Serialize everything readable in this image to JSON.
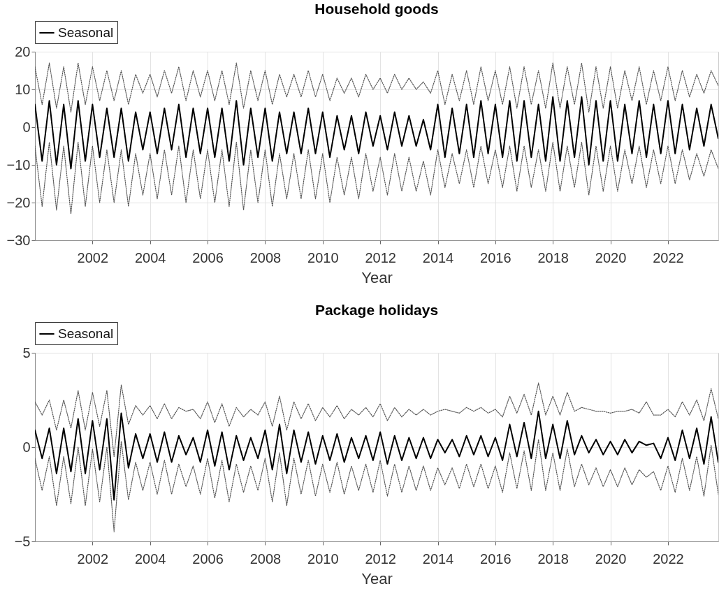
{
  "chart_data": [
    {
      "type": "line",
      "title": "Household goods",
      "xlabel": "Year",
      "grid": true,
      "legend": "top left",
      "x": [
        2000,
        2000.25,
        2000.5,
        2000.75,
        2001,
        2001.25,
        2001.5,
        2001.75,
        2002,
        2002.25,
        2002.5,
        2002.75,
        2003,
        2003.25,
        2003.5,
        2003.75,
        2004,
        2004.25,
        2004.5,
        2004.75,
        2005,
        2005.25,
        2005.5,
        2005.75,
        2006,
        2006.25,
        2006.5,
        2006.75,
        2007,
        2007.25,
        2007.5,
        2007.75,
        2008,
        2008.25,
        2008.5,
        2008.75,
        2009,
        2009.25,
        2009.5,
        2009.75,
        2010,
        2010.25,
        2010.5,
        2010.75,
        2011,
        2011.25,
        2011.5,
        2011.75,
        2012,
        2012.25,
        2012.5,
        2012.75,
        2013,
        2013.25,
        2013.5,
        2013.75,
        2014,
        2014.25,
        2014.5,
        2014.75,
        2015,
        2015.25,
        2015.5,
        2015.75,
        2016,
        2016.25,
        2016.5,
        2016.75,
        2017,
        2017.25,
        2017.5,
        2017.75,
        2018,
        2018.25,
        2018.5,
        2018.75,
        2019,
        2019.25,
        2019.5,
        2019.75,
        2020,
        2020.25,
        2020.5,
        2020.75,
        2021,
        2021.25,
        2021.5,
        2021.75,
        2022,
        2022.25,
        2022.5,
        2022.75,
        2023,
        2023.25,
        2023.5,
        2023.75
      ],
      "xlim": [
        2000,
        2023.75
      ],
      "xticks": [
        2002,
        2004,
        2006,
        2008,
        2010,
        2012,
        2014,
        2016,
        2018,
        2020,
        2022
      ],
      "ylim": [
        -30,
        20
      ],
      "yticks": [
        -30,
        -20,
        -10,
        0,
        10,
        20
      ],
      "series": [
        {
          "type": "line",
          "line_style": "dotted",
          "color": "#555555",
          "values": [
            16,
            6,
            17,
            5,
            16,
            4,
            17,
            6,
            16,
            7,
            15,
            7,
            15,
            6,
            14,
            9,
            14,
            8,
            15,
            9,
            16,
            7,
            15,
            8,
            15,
            7,
            15,
            6,
            17,
            5,
            15,
            7,
            15,
            6,
            14,
            8,
            14,
            8,
            15,
            8,
            14,
            7,
            13,
            9,
            13,
            8,
            14,
            10,
            13,
            9,
            14,
            10,
            13,
            10,
            12,
            9,
            15,
            6,
            14,
            7,
            15,
            6,
            16,
            7,
            15,
            6,
            16,
            5,
            16,
            6,
            15,
            5,
            17,
            5,
            16,
            6,
            17,
            4,
            16,
            5,
            16,
            5,
            15,
            7,
            16,
            6,
            15,
            7,
            16,
            7,
            15,
            8,
            14,
            9,
            15,
            11
          ]
        },
        {
          "type": "line",
          "line_style": "dotted",
          "color": "#555555",
          "values": [
            -5,
            -21,
            -4,
            -22,
            -5,
            -23,
            -4,
            -21,
            -5,
            -20,
            -6,
            -20,
            -6,
            -21,
            -7,
            -18,
            -7,
            -19,
            -6,
            -18,
            -5,
            -20,
            -6,
            -19,
            -6,
            -20,
            -6,
            -21,
            -4,
            -22,
            -6,
            -20,
            -6,
            -21,
            -7,
            -19,
            -7,
            -19,
            -6,
            -19,
            -7,
            -20,
            -8,
            -18,
            -8,
            -19,
            -7,
            -17,
            -8,
            -18,
            -7,
            -17,
            -8,
            -17,
            -9,
            -18,
            -6,
            -16,
            -7,
            -15,
            -6,
            -16,
            -5,
            -15,
            -6,
            -16,
            -5,
            -17,
            -5,
            -16,
            -6,
            -17,
            -4,
            -17,
            -5,
            -16,
            -4,
            -18,
            -5,
            -17,
            -5,
            -17,
            -6,
            -15,
            -5,
            -16,
            -6,
            -15,
            -5,
            -15,
            -6,
            -14,
            -7,
            -13,
            -6,
            -11
          ]
        },
        {
          "type": "line",
          "line_style": "solid",
          "name": "Seasonal",
          "color": "#000000",
          "values": [
            6,
            -9,
            7,
            -10,
            6,
            -11,
            7,
            -9,
            6,
            -8,
            5,
            -8,
            5,
            -9,
            4,
            -6,
            4,
            -7,
            5,
            -6,
            6,
            -8,
            5,
            -7,
            5,
            -8,
            5,
            -9,
            7,
            -10,
            5,
            -8,
            5,
            -9,
            4,
            -7,
            4,
            -7,
            5,
            -7,
            4,
            -8,
            3,
            -6,
            3,
            -7,
            4,
            -5,
            3,
            -6,
            4,
            -5,
            3,
            -5,
            2,
            -6,
            6,
            -8,
            5,
            -7,
            6,
            -8,
            7,
            -7,
            6,
            -8,
            7,
            -9,
            7,
            -8,
            6,
            -9,
            8,
            -9,
            7,
            -8,
            8,
            -10,
            7,
            -9,
            7,
            -9,
            6,
            -7,
            7,
            -8,
            6,
            -7,
            7,
            -7,
            6,
            -6,
            5,
            -5,
            6,
            -3
          ]
        }
      ]
    },
    {
      "type": "line",
      "title": "Package holidays",
      "xlabel": "Year",
      "grid": true,
      "legend": "top left",
      "x": [
        2000,
        2000.25,
        2000.5,
        2000.75,
        2001,
        2001.25,
        2001.5,
        2001.75,
        2002,
        2002.25,
        2002.5,
        2002.75,
        2003,
        2003.25,
        2003.5,
        2003.75,
        2004,
        2004.25,
        2004.5,
        2004.75,
        2005,
        2005.25,
        2005.5,
        2005.75,
        2006,
        2006.25,
        2006.5,
        2006.75,
        2007,
        2007.25,
        2007.5,
        2007.75,
        2008,
        2008.25,
        2008.5,
        2008.75,
        2009,
        2009.25,
        2009.5,
        2009.75,
        2010,
        2010.25,
        2010.5,
        2010.75,
        2011,
        2011.25,
        2011.5,
        2011.75,
        2012,
        2012.25,
        2012.5,
        2012.75,
        2013,
        2013.25,
        2013.5,
        2013.75,
        2014,
        2014.25,
        2014.5,
        2014.75,
        2015,
        2015.25,
        2015.5,
        2015.75,
        2016,
        2016.25,
        2016.5,
        2016.75,
        2017,
        2017.25,
        2017.5,
        2017.75,
        2018,
        2018.25,
        2018.5,
        2018.75,
        2019,
        2019.25,
        2019.5,
        2019.75,
        2020,
        2020.25,
        2020.5,
        2020.75,
        2021,
        2021.25,
        2021.5,
        2021.75,
        2022,
        2022.25,
        2022.5,
        2022.75,
        2023,
        2023.25,
        2023.5,
        2023.75
      ],
      "xlim": [
        2000,
        2023.75
      ],
      "xticks": [
        2002,
        2004,
        2006,
        2008,
        2010,
        2012,
        2014,
        2016,
        2018,
        2020,
        2022
      ],
      "ylim": [
        -5,
        5
      ],
      "yticks": [
        -5,
        0,
        5
      ],
      "series": [
        {
          "type": "line",
          "line_style": "dotted",
          "color": "#555555",
          "values": [
            2.4,
            1.7,
            2.5,
            0.9,
            2.5,
            1.0,
            3.0,
            0.9,
            2.9,
            1.1,
            3.0,
            -0.5,
            3.3,
            1.2,
            2.2,
            1.7,
            2.2,
            1.5,
            2.3,
            1.5,
            2.1,
            1.9,
            2.0,
            1.5,
            2.4,
            1.3,
            2.3,
            1.1,
            2.1,
            1.6,
            2.0,
            1.7,
            2.4,
            1.1,
            2.7,
            0.9,
            2.4,
            1.5,
            2.3,
            1.4,
            2.1,
            1.6,
            2.2,
            1.5,
            2.0,
            1.7,
            2.1,
            1.6,
            2.3,
            1.4,
            2.1,
            1.6,
            2.0,
            1.7,
            2.0,
            1.7,
            1.9,
            2.0,
            1.9,
            1.8,
            2.1,
            1.9,
            2.1,
            1.8,
            2.0,
            1.6,
            2.7,
            1.8,
            2.8,
            1.7,
            3.4,
            1.7,
            2.7,
            1.7,
            2.9,
            1.9,
            2.1,
            2.0,
            1.9,
            1.9,
            1.8,
            1.9,
            1.9,
            2.0,
            1.8,
            2.4,
            1.7,
            1.7,
            2.0,
            1.6,
            2.4,
            1.7,
            2.5,
            1.4,
            3.1,
            1.5
          ]
        },
        {
          "type": "line",
          "line_style": "dotted",
          "color": "#555555",
          "values": [
            -0.6,
            -2.3,
            -0.5,
            -3.1,
            -0.5,
            -3.0,
            0.0,
            -3.1,
            -0.1,
            -2.9,
            0.0,
            -4.5,
            0.3,
            -2.8,
            -0.8,
            -2.3,
            -0.8,
            -2.5,
            -0.7,
            -2.5,
            -0.9,
            -2.1,
            -1.0,
            -2.5,
            -0.6,
            -2.7,
            -0.7,
            -2.9,
            -0.9,
            -2.4,
            -1.0,
            -2.3,
            -0.6,
            -2.9,
            -0.3,
            -3.1,
            -0.6,
            -2.5,
            -0.7,
            -2.6,
            -0.9,
            -2.4,
            -0.8,
            -2.5,
            -1.0,
            -2.3,
            -0.9,
            -2.4,
            -0.7,
            -2.6,
            -0.9,
            -2.4,
            -1.0,
            -2.3,
            -1.0,
            -2.3,
            -1.1,
            -2.0,
            -1.1,
            -2.2,
            -0.9,
            -2.1,
            -0.9,
            -2.2,
            -1.0,
            -2.4,
            -0.3,
            -2.2,
            -0.2,
            -2.3,
            0.4,
            -2.3,
            -0.3,
            -2.3,
            -0.1,
            -2.1,
            -0.9,
            -2.0,
            -1.1,
            -2.1,
            -1.2,
            -2.1,
            -1.1,
            -2.0,
            -1.2,
            -1.6,
            -1.3,
            -2.3,
            -1.0,
            -2.4,
            -0.6,
            -2.3,
            -0.5,
            -2.6,
            0.1,
            -2.5
          ]
        },
        {
          "type": "line",
          "line_style": "solid",
          "name": "Seasonal",
          "color": "#000000",
          "values": [
            0.9,
            -0.6,
            1.0,
            -1.4,
            1.0,
            -1.3,
            1.5,
            -1.4,
            1.4,
            -1.2,
            1.5,
            -2.8,
            1.8,
            -1.1,
            0.7,
            -0.6,
            0.7,
            -0.8,
            0.8,
            -0.8,
            0.6,
            -0.4,
            0.5,
            -0.8,
            0.9,
            -1.0,
            0.8,
            -1.2,
            0.6,
            -0.7,
            0.5,
            -0.6,
            0.9,
            -1.2,
            1.2,
            -1.4,
            0.9,
            -0.8,
            0.8,
            -0.9,
            0.6,
            -0.7,
            0.7,
            -0.8,
            0.5,
            -0.6,
            0.6,
            -0.7,
            0.8,
            -0.9,
            0.6,
            -0.7,
            0.5,
            -0.6,
            0.5,
            -0.6,
            0.4,
            -0.3,
            0.4,
            -0.5,
            0.6,
            -0.4,
            0.6,
            -0.5,
            0.5,
            -0.7,
            1.2,
            -0.5,
            1.3,
            -0.6,
            1.9,
            -0.6,
            1.2,
            -0.6,
            1.4,
            -0.4,
            0.6,
            -0.3,
            0.4,
            -0.4,
            0.3,
            -0.4,
            0.4,
            -0.3,
            0.3,
            0.1,
            0.2,
            -0.6,
            0.5,
            -0.7,
            0.9,
            -0.6,
            1.0,
            -0.9,
            1.6,
            -0.8
          ]
        }
      ]
    }
  ]
}
